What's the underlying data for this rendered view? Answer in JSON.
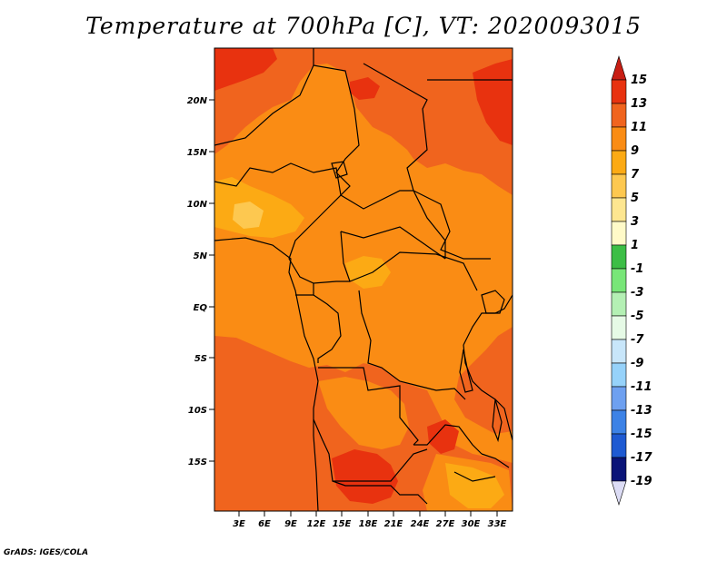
{
  "title": "Temperature at 700hPa [C], VT: 2020093015",
  "credit": "GrADS: IGES/COLA",
  "map": {
    "lat_labels": [
      "20N",
      "15N",
      "10N",
      "5N",
      "EQ",
      "5S",
      "10S",
      "15S"
    ],
    "lon_labels": [
      "3E",
      "6E",
      "9E",
      "12E",
      "15E",
      "18E",
      "21E",
      "24E",
      "27E",
      "30E",
      "33E"
    ]
  },
  "colorbar": {
    "labels": [
      "15",
      "13",
      "11",
      "9",
      "7",
      "5",
      "3",
      "1",
      "-1",
      "-3",
      "-5",
      "-7",
      "-9",
      "-11",
      "-13",
      "-15",
      "-17",
      "-19"
    ],
    "colors": {
      "max_arrow": "#c81e14",
      "b13_15": "#e8320f",
      "b11_13": "#f0641e",
      "b9_11": "#fa8c14",
      "b7_9": "#fcaa14",
      "b5_7": "#fdc850",
      "b3_5": "#fde690",
      "b1_3": "#fffac8",
      "bm1_1": "#3cbe46",
      "bm3_m1": "#78e678",
      "bm5_m3": "#b4f0b4",
      "bm7_m5": "#e6fae6",
      "bm9_m7": "#c8e6fa",
      "bm11_m9": "#96d2fa",
      "bm13_m11": "#6ea0f0",
      "bm15_m13": "#3c82e6",
      "bm17_m15": "#1e5ad2",
      "bm19_m17": "#1432aa",
      "min_band": "#0a1478",
      "min_arrow": "#dcdcf5"
    }
  }
}
